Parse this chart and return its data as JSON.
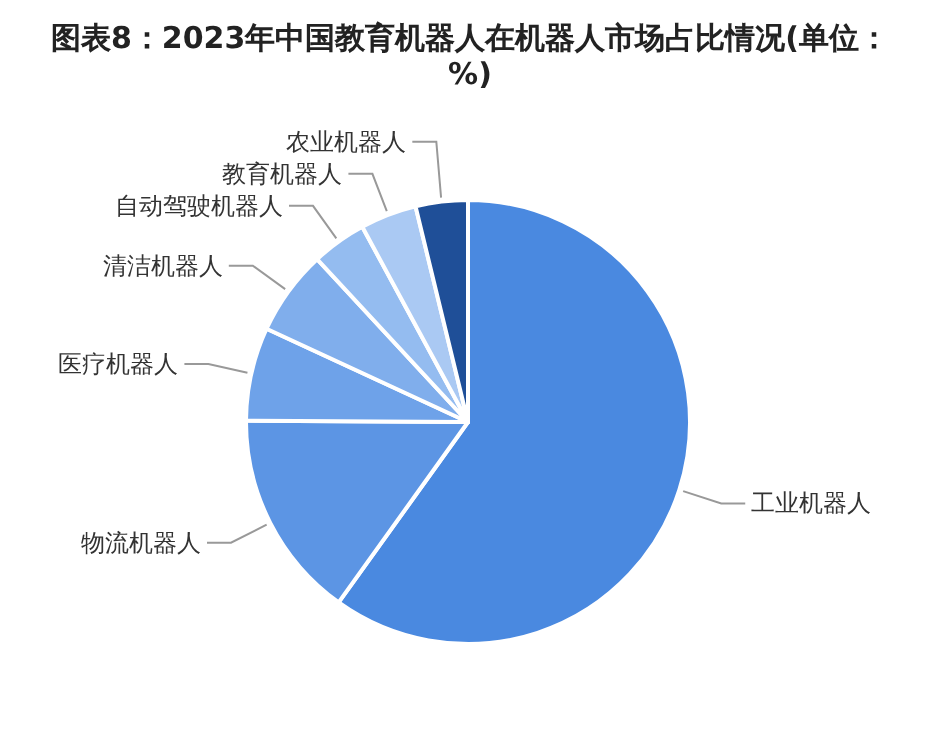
{
  "chart_data": {
    "type": "pie",
    "title": "图表8：2023年中国教育机器人在机器人市场占比情况(单位：%)",
    "categories": [
      "工业机器人",
      "物流机器人",
      "医疗机器人",
      "清洁机器人",
      "自动驾驶机器人",
      "教育机器人",
      "农业机器人"
    ],
    "values": [
      59.9,
      15.2,
      6.8,
      6.2,
      4.0,
      4.1,
      3.8
    ],
    "colors": [
      "#4a89e0",
      "#5c95e4",
      "#6ea2e9",
      "#80aeec",
      "#94bcf0",
      "#aac9f3",
      "#1f4f98"
    ]
  }
}
